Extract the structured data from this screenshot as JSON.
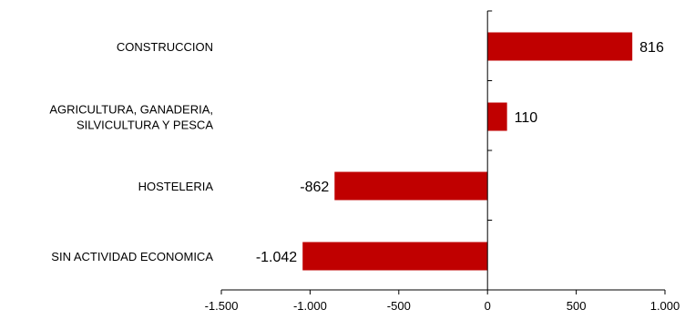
{
  "chart_data": {
    "type": "bar",
    "orientation": "horizontal",
    "categories": [
      [
        "CONSTRUCCION"
      ],
      [
        "AGRICULTURA, GANADERIA,",
        "SILVICULTURA Y PESCA"
      ],
      [
        "HOSTELERIA"
      ],
      [
        "SIN ACTIVIDAD ECONOMICA"
      ]
    ],
    "values": [
      816,
      110,
      -862,
      -1042
    ],
    "value_labels": [
      "816",
      "110",
      "-862",
      "-1.042"
    ],
    "xlim": [
      -1500,
      1000
    ],
    "x_ticks": [
      -1500,
      -1000,
      -500,
      0,
      500,
      1000
    ],
    "x_tick_labels": [
      "-1.500",
      "-1.000",
      "-500",
      "0",
      "500",
      "1.000"
    ],
    "grid": false,
    "legend": "none",
    "bar_color": "#C00000",
    "axis_color": "#000000"
  }
}
